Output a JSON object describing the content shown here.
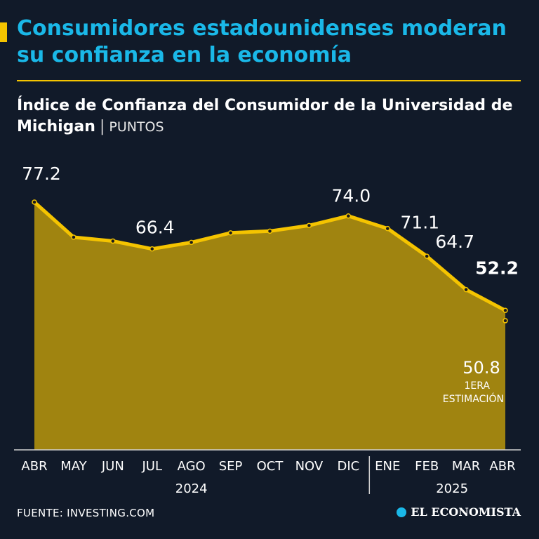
{
  "header": {
    "title": "Consumidores estadounidenses moderan su confianza en la economía",
    "subtitle": "Índice de Confianza del Consumidor de la Universidad de Michigan",
    "unit": "PUNTOS"
  },
  "footer": {
    "source": "FUENTE: INVESTING.COM",
    "brand": "EL ECONOMISTA"
  },
  "colors": {
    "line": "#f5c400",
    "area": "#a08410",
    "title": "#1ab8e8",
    "background": "#111a29"
  },
  "chart_data": {
    "type": "area",
    "title": "Índice de Confianza del Consumidor de la Universidad de Michigan",
    "ylabel": "PUNTOS",
    "grid": false,
    "ylim": [
      20,
      80
    ],
    "categories": [
      "ABR",
      "MAY",
      "JUN",
      "JUL",
      "AGO",
      "SEP",
      "OCT",
      "NOV",
      "DIC",
      "ENE",
      "FEB",
      "MAR",
      "ABR"
    ],
    "years": [
      {
        "label": "2024",
        "from": 0,
        "to": 8
      },
      {
        "label": "2025",
        "from": 9,
        "to": 12
      }
    ],
    "series": [
      {
        "name": "Índice",
        "values": [
          77.2,
          69.1,
          68.2,
          66.4,
          67.9,
          70.1,
          70.5,
          71.8,
          74.0,
          71.1,
          64.7,
          57.0,
          52.2
        ]
      }
    ],
    "data_labels": [
      {
        "index": 0,
        "text": "77.2"
      },
      {
        "index": 3,
        "text": "66.4"
      },
      {
        "index": 8,
        "text": "74.0"
      },
      {
        "index": 9,
        "text": "71.1"
      },
      {
        "index": 10,
        "text": "64.7"
      },
      {
        "index": 12,
        "text": "52.2"
      }
    ],
    "annotation": {
      "index": 12,
      "value": 50.8,
      "text": "50.8",
      "note_line1": "1ERA",
      "note_line2": "ESTIMACIÓN"
    }
  }
}
